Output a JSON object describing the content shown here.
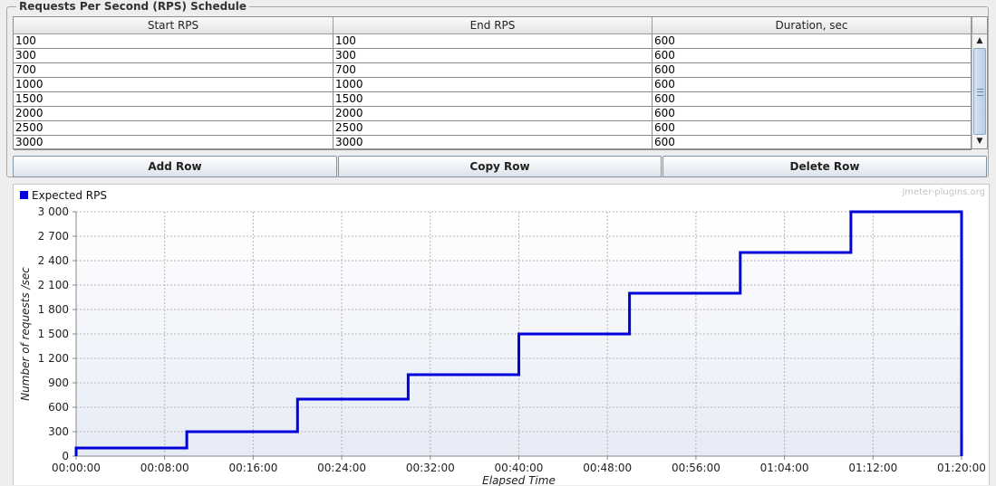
{
  "schedule": {
    "title": "Requests Per Second (RPS) Schedule",
    "columns": [
      "Start RPS",
      "End RPS",
      "Duration, sec"
    ],
    "rows": [
      [
        "100",
        "100",
        "600"
      ],
      [
        "300",
        "300",
        "600"
      ],
      [
        "700",
        "700",
        "600"
      ],
      [
        "1000",
        "1000",
        "600"
      ],
      [
        "1500",
        "1500",
        "600"
      ],
      [
        "2000",
        "2000",
        "600"
      ],
      [
        "2500",
        "2500",
        "600"
      ],
      [
        "3000",
        "3000",
        "600"
      ]
    ],
    "buttons": {
      "add": "Add Row",
      "copy": "Copy Row",
      "delete": "Delete Row"
    },
    "icons": {
      "scroll_up": "triangle-up-icon",
      "scroll_down": "triangle-down-icon"
    }
  },
  "chart_data": {
    "type": "line",
    "watermark": "jmeter-plugins.org",
    "legend": "Expected RPS",
    "legend_placement": "top-left",
    "xlabel": "Elapsed Time",
    "ylabel": "Number of requests /sec",
    "grid": true,
    "x_unit": "seconds",
    "xlim": [
      0,
      4800
    ],
    "ylim": [
      0,
      3000
    ],
    "x_ticks": [
      "00:00:00",
      "00:08:00",
      "00:16:00",
      "00:24:00",
      "00:32:00",
      "00:40:00",
      "00:48:00",
      "00:56:00",
      "01:04:00",
      "01:12:00",
      "01:20:00"
    ],
    "y_ticks": [
      "0",
      "300",
      "600",
      "900",
      "1 200",
      "1 500",
      "1 800",
      "2 100",
      "2 400",
      "2 700",
      "3 000"
    ],
    "series": [
      {
        "name": "Expected RPS",
        "color": "#0000dd",
        "x": [
          0,
          0,
          600,
          600,
          1200,
          1200,
          1800,
          1800,
          2400,
          2400,
          3000,
          3000,
          3600,
          3600,
          4200,
          4200,
          4800,
          4800
        ],
        "y": [
          0,
          100,
          100,
          300,
          300,
          700,
          700,
          1000,
          1000,
          1500,
          1500,
          2000,
          2000,
          2500,
          2500,
          3000,
          3000,
          0
        ]
      }
    ]
  }
}
